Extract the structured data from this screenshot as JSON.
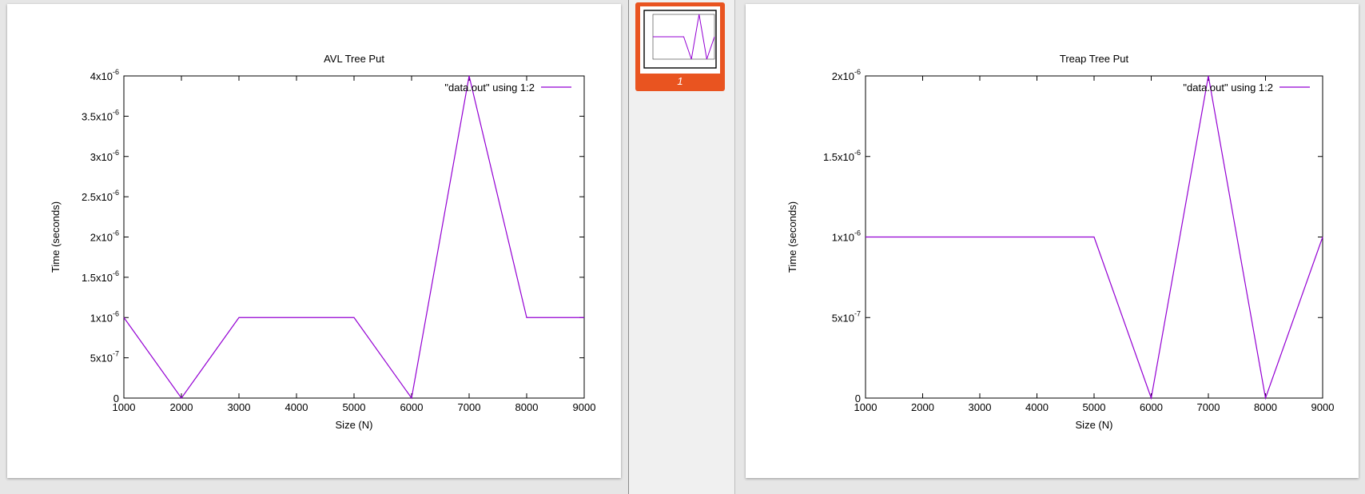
{
  "viewer": {
    "thumbnail_label": "1"
  },
  "chart_data": [
    {
      "type": "line",
      "title": "AVL Tree Put",
      "xlabel": "Size (N)",
      "ylabel": "Time (seconds)",
      "xlim": [
        1000,
        9000
      ],
      "ylim": [
        0,
        4e-06
      ],
      "x_ticks": [
        "1000",
        "2000",
        "3000",
        "4000",
        "5000",
        "6000",
        "7000",
        "8000",
        "9000"
      ],
      "y_ticks": [
        {
          "value": 0,
          "mant": "0",
          "exp": ""
        },
        {
          "value": 5e-07,
          "mant": "5x10",
          "exp": "-7"
        },
        {
          "value": 1e-06,
          "mant": "1x10",
          "exp": "-6"
        },
        {
          "value": 1.5e-06,
          "mant": "1.5x10",
          "exp": "-6"
        },
        {
          "value": 2e-06,
          "mant": "2x10",
          "exp": "-6"
        },
        {
          "value": 2.5e-06,
          "mant": "2.5x10",
          "exp": "-6"
        },
        {
          "value": 3e-06,
          "mant": "3x10",
          "exp": "-6"
        },
        {
          "value": 3.5e-06,
          "mant": "3.5x10",
          "exp": "-6"
        },
        {
          "value": 4e-06,
          "mant": "4x10",
          "exp": "-6"
        }
      ],
      "legend_position": "top-right",
      "series": [
        {
          "name": "\"data.out\" using 1:2",
          "color": "#9400d3",
          "x": [
            1000,
            2000,
            3000,
            4000,
            5000,
            6000,
            7000,
            8000,
            9000
          ],
          "y": [
            1e-06,
            0,
            1e-06,
            1e-06,
            1e-06,
            0,
            4e-06,
            1e-06,
            1e-06
          ]
        }
      ]
    },
    {
      "type": "line",
      "title": "Treap Tree Put",
      "xlabel": "Size (N)",
      "ylabel": "Time (seconds)",
      "xlim": [
        1000,
        9000
      ],
      "ylim": [
        0,
        2e-06
      ],
      "x_ticks": [
        "1000",
        "2000",
        "3000",
        "4000",
        "5000",
        "6000",
        "7000",
        "8000",
        "9000"
      ],
      "y_ticks": [
        {
          "value": 0,
          "mant": "0",
          "exp": ""
        },
        {
          "value": 5e-07,
          "mant": "5x10",
          "exp": "-7"
        },
        {
          "value": 1e-06,
          "mant": "1x10",
          "exp": "-6"
        },
        {
          "value": 1.5e-06,
          "mant": "1.5x10",
          "exp": "-6"
        },
        {
          "value": 2e-06,
          "mant": "2x10",
          "exp": "-6"
        }
      ],
      "legend_position": "top-right",
      "series": [
        {
          "name": "\"data.out\" using 1:2",
          "color": "#9400d3",
          "x": [
            1000,
            2000,
            3000,
            4000,
            5000,
            6000,
            7000,
            8000,
            9000
          ],
          "y": [
            1e-06,
            1e-06,
            1e-06,
            1e-06,
            1e-06,
            0,
            2e-06,
            0,
            1e-06
          ]
        }
      ]
    }
  ]
}
